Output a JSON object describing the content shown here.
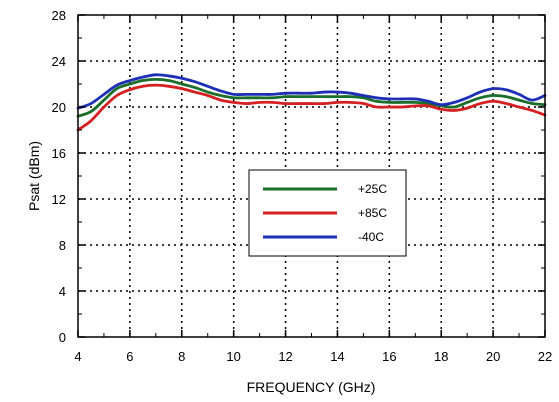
{
  "chart_data": {
    "type": "line",
    "title": "",
    "xlabel": "FREQUENCY (GHz)",
    "ylabel": "Psat (dBm)",
    "xlim": [
      4,
      22
    ],
    "ylim": [
      0,
      28
    ],
    "xticks": [
      4,
      6,
      8,
      10,
      12,
      14,
      16,
      18,
      20,
      22
    ],
    "yticks": [
      0,
      4,
      8,
      12,
      16,
      20,
      24,
      28
    ],
    "xtick_labels": [
      "4",
      "6",
      "8",
      "10",
      "12",
      "14",
      "16",
      "18",
      "20",
      "22"
    ],
    "ytick_labels": [
      "0",
      "4",
      "8",
      "12",
      "16",
      "20",
      "24",
      "28"
    ],
    "grid": true,
    "grid_style": "dotted",
    "legend_position": "center-right",
    "series": [
      {
        "name": "+25C",
        "color": "#1a6e2a",
        "x": [
          4,
          4.5,
          5,
          5.5,
          6,
          6.5,
          7,
          7.5,
          8,
          8.5,
          9,
          9.5,
          10,
          10.5,
          11,
          11.5,
          12,
          12.5,
          13,
          13.5,
          14,
          14.5,
          15,
          15.5,
          16,
          16.5,
          17,
          17.5,
          18,
          18.5,
          19,
          19.5,
          20,
          20.5,
          21,
          21.5,
          22
        ],
        "y": [
          19.2,
          19.6,
          20.6,
          21.6,
          22.0,
          22.3,
          22.4,
          22.3,
          22.0,
          21.7,
          21.3,
          21.0,
          20.8,
          20.8,
          20.8,
          20.8,
          20.9,
          20.9,
          20.9,
          20.9,
          20.9,
          20.9,
          20.8,
          20.5,
          20.4,
          20.4,
          20.4,
          20.3,
          20.1,
          20.0,
          20.4,
          20.8,
          21.0,
          20.9,
          20.6,
          20.3,
          20.2
        ]
      },
      {
        "name": "+85C",
        "color": "#d42020",
        "x": [
          4,
          4.5,
          5,
          5.5,
          6,
          6.5,
          7,
          7.5,
          8,
          8.5,
          9,
          9.5,
          10,
          10.5,
          11,
          11.5,
          12,
          12.5,
          13,
          13.5,
          14,
          14.5,
          15,
          15.5,
          16,
          16.5,
          17,
          17.5,
          18,
          18.5,
          19,
          19.5,
          20,
          20.5,
          21,
          21.5,
          22
        ],
        "y": [
          18.0,
          18.8,
          20.0,
          21.0,
          21.5,
          21.8,
          21.9,
          21.8,
          21.6,
          21.3,
          21.0,
          20.6,
          20.4,
          20.3,
          20.4,
          20.4,
          20.3,
          20.3,
          20.3,
          20.3,
          20.4,
          20.4,
          20.3,
          20.0,
          20.0,
          20.0,
          20.1,
          20.1,
          19.8,
          19.7,
          19.9,
          20.3,
          20.5,
          20.3,
          20.0,
          19.7,
          19.3
        ]
      },
      {
        "name": "-40C",
        "color": "#1c2fb5",
        "x": [
          4,
          4.5,
          5,
          5.5,
          6,
          6.5,
          7,
          7.5,
          8,
          8.5,
          9,
          9.5,
          10,
          10.5,
          11,
          11.5,
          12,
          12.5,
          13,
          13.5,
          14,
          14.5,
          15,
          15.5,
          16,
          16.5,
          17,
          17.5,
          18,
          18.5,
          19,
          19.5,
          20,
          20.5,
          21,
          21.5,
          22
        ],
        "y": [
          19.9,
          20.3,
          21.1,
          21.9,
          22.3,
          22.6,
          22.8,
          22.7,
          22.5,
          22.2,
          21.8,
          21.4,
          21.1,
          21.1,
          21.1,
          21.1,
          21.2,
          21.2,
          21.2,
          21.3,
          21.3,
          21.2,
          21.0,
          20.8,
          20.7,
          20.7,
          20.7,
          20.5,
          20.2,
          20.4,
          20.8,
          21.3,
          21.6,
          21.5,
          21.1,
          20.6,
          21.0
        ]
      }
    ]
  }
}
